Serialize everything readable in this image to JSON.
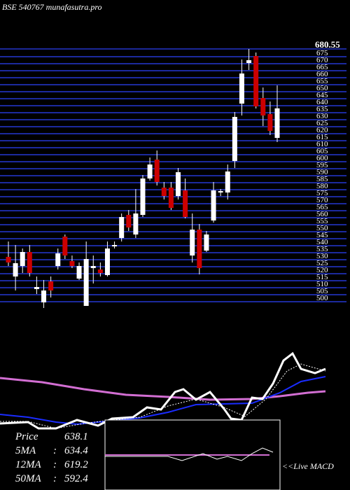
{
  "chart_data": {
    "type": "candlestick",
    "title": "BSE 540767 munafasutra.pro",
    "ylim": [
      495,
      685
    ],
    "yticks": [
      680.55,
      675,
      670,
      665,
      660,
      655,
      650,
      645,
      640,
      635,
      630,
      625,
      620,
      615,
      610,
      605,
      600,
      595,
      590,
      585,
      580,
      575,
      570,
      565,
      560,
      555,
      550,
      545,
      540,
      535,
      530,
      525,
      520,
      515,
      510,
      505,
      500
    ],
    "up_color": "#ffffff",
    "down_color": "#cc0000",
    "grid_color": "#1c2a9e",
    "candles": [
      {
        "o": 532,
        "h": 543,
        "l": 525.5,
        "c": 528
      },
      {
        "o": 518,
        "h": 540.5,
        "l": 508,
        "c": 527.5
      },
      {
        "o": 525.5,
        "h": 538,
        "l": 520.5,
        "c": 535.5
      },
      {
        "o": 535.5,
        "h": 540.5,
        "l": 518,
        "c": 520.5
      },
      {
        "o": 509,
        "h": 518,
        "l": 505.5,
        "c": 510.5
      },
      {
        "o": 499.5,
        "h": 515.5,
        "l": 495.5,
        "c": 508
      },
      {
        "o": 514.5,
        "h": 518,
        "l": 503,
        "c": 508
      },
      {
        "o": 525.5,
        "h": 538,
        "l": 523,
        "c": 534.5
      },
      {
        "o": 546.5,
        "h": 548,
        "l": 530.5,
        "c": 533
      },
      {
        "o": 529,
        "h": 533,
        "l": 524,
        "c": 525.5
      },
      {
        "o": 516.5,
        "h": 528,
        "l": 515.5,
        "c": 525.5
      },
      {
        "o": 497,
        "h": 543,
        "l": 497,
        "c": 530.5
      },
      {
        "o": 524,
        "h": 533,
        "l": 513,
        "c": 525.5
      },
      {
        "o": 523,
        "h": 528,
        "l": 518,
        "c": 520.5
      },
      {
        "o": 519,
        "h": 543,
        "l": 518,
        "c": 538
      },
      {
        "o": 539.5,
        "h": 543,
        "l": 538,
        "c": 540.5
      },
      {
        "o": 545.5,
        "h": 563,
        "l": 543,
        "c": 560.5
      },
      {
        "o": 562,
        "h": 565.5,
        "l": 550.5,
        "c": 553
      },
      {
        "o": 548,
        "h": 580.5,
        "l": 545.5,
        "c": 563
      },
      {
        "o": 562,
        "h": 590.5,
        "l": 560.5,
        "c": 588
      },
      {
        "o": 588,
        "h": 603,
        "l": 586.5,
        "c": 598
      },
      {
        "o": 601.5,
        "h": 608,
        "l": 583,
        "c": 585.5
      },
      {
        "o": 581.5,
        "h": 585.5,
        "l": 573,
        "c": 575.5
      },
      {
        "o": 581.5,
        "h": 585.5,
        "l": 565.5,
        "c": 567
      },
      {
        "o": 575.5,
        "h": 595.5,
        "l": 573,
        "c": 592.5
      },
      {
        "o": 579.5,
        "h": 588,
        "l": 559.5,
        "c": 560.5
      },
      {
        "o": 533,
        "h": 563,
        "l": 528,
        "c": 551.5
      },
      {
        "o": 551.5,
        "h": 555.5,
        "l": 519.5,
        "c": 524
      },
      {
        "o": 536.5,
        "h": 550.5,
        "l": 535.5,
        "c": 548
      },
      {
        "o": 558,
        "h": 585.5,
        "l": 556.5,
        "c": 579.5
      },
      {
        "o": 578,
        "h": 580.5,
        "l": 575.5,
        "c": 579
      },
      {
        "o": 578,
        "h": 598,
        "l": 573,
        "c": 593
      },
      {
        "o": 600.5,
        "h": 635.5,
        "l": 595.5,
        "c": 632
      },
      {
        "o": 641.5,
        "h": 673,
        "l": 633,
        "c": 663
      },
      {
        "o": 670.5,
        "h": 680.5,
        "l": 665.5,
        "c": 672.5
      },
      {
        "o": 675.5,
        "h": 678,
        "l": 638,
        "c": 639.5
      },
      {
        "o": 645.5,
        "h": 653,
        "l": 625.5,
        "c": 633
      },
      {
        "o": 634,
        "h": 643,
        "l": 619,
        "c": 622
      },
      {
        "o": 617,
        "h": 654.5,
        "l": 614,
        "c": 638.1
      }
    ],
    "info": [
      {
        "label": "Price",
        "value": 638.1
      },
      {
        "label": "5MA",
        "value": 634.4
      },
      {
        "label": "12MA",
        "value": 619.2
      },
      {
        "label": "50MA",
        "value": 592.4
      }
    ],
    "macd_label": "<<Live MACD"
  }
}
